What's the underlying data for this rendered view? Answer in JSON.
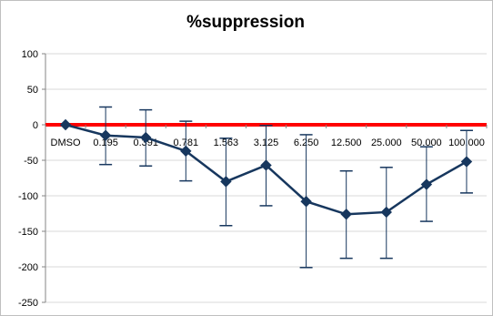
{
  "chart_data": {
    "type": "line",
    "title": "%suppression",
    "xlabel": "",
    "ylabel": "",
    "categories": [
      "DMSO",
      "0.195",
      "0.391",
      "0.781",
      "1.563",
      "3.125",
      "6.250",
      "12.500",
      "25.000",
      "50.000",
      "100.000"
    ],
    "series": [
      {
        "values": [
          0,
          -15,
          -18,
          -37,
          -80,
          -57,
          -108,
          -126,
          -123,
          -84,
          -52
        ],
        "error_high": [
          0,
          25,
          21,
          5,
          -19,
          -1,
          -14,
          -65,
          -60,
          -31,
          -8
        ],
        "error_low": [
          0,
          -56,
          -58,
          -79,
          -142,
          -114,
          -201,
          -188,
          -188,
          -136,
          -96
        ],
        "color": "#17375e",
        "marker": "diamond"
      }
    ],
    "reference_line": {
      "value": 0,
      "color": "#ff0000"
    },
    "ylim": [
      -250,
      100
    ],
    "yticks": [
      100,
      50,
      0,
      -50,
      -100,
      -150,
      -200,
      -250
    ],
    "grid": "horizontal",
    "legend": "none"
  }
}
